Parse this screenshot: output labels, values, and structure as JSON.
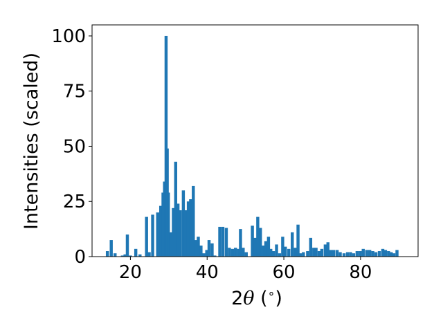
{
  "chart_data": {
    "type": "bar",
    "title": "",
    "xlabel": "2θ (°)",
    "xlabel_parts": {
      "pre": "2",
      "theta": "θ",
      "post": " (",
      "deg": "∘",
      "close": ")"
    },
    "ylabel": "Intensities (scaled)",
    "xlim": [
      10,
      95
    ],
    "ylim": [
      0,
      105
    ],
    "xticks": [
      20,
      40,
      60,
      80
    ],
    "yticks": [
      0,
      25,
      50,
      75,
      100
    ],
    "grid": false,
    "legend": "none",
    "bar_width": 0.8,
    "color": "#1f77b4",
    "x": [
      14.0,
      15.0,
      16.0,
      17.9,
      18.6,
      19.2,
      20.0,
      21.4,
      22.5,
      24.2,
      24.9,
      25.8,
      27.1,
      27.9,
      28.5,
      28.9,
      29.3,
      29.6,
      29.9,
      30.5,
      31.2,
      31.8,
      32.4,
      33.0,
      33.8,
      34.4,
      35.1,
      35.7,
      36.4,
      37.0,
      37.7,
      38.4,
      39.1,
      39.9,
      40.5,
      41.3,
      42.0,
      43.3,
      44.1,
      45.0,
      45.8,
      46.6,
      47.4,
      48.2,
      48.7,
      49.4,
      50.2,
      51.8,
      52.5,
      53.2,
      53.9,
      54.7,
      55.3,
      56.0,
      56.6,
      57.3,
      58.1,
      58.9,
      59.7,
      60.4,
      61.3,
      62.2,
      63.0,
      63.7,
      64.3,
      65.1,
      66.2,
      67.0,
      67.8,
      68.4,
      69.2,
      69.9,
      70.8,
      71.5,
      72.3,
      73.0,
      73.9,
      74.7,
      75.7,
      76.6,
      77.4,
      78.2,
      79.1,
      79.9,
      80.7,
      81.6,
      82.4,
      83.2,
      84.0,
      84.9,
      85.8,
      86.5,
      87.3,
      88.0,
      88.7,
      89.5
    ],
    "values": [
      2.5,
      7.5,
      1.5,
      0.5,
      1.0,
      10.0,
      0.5,
      3.5,
      1.0,
      18.0,
      2.0,
      19.0,
      20.0,
      23.0,
      29.0,
      34.0,
      100.0,
      49.0,
      29.0,
      11.0,
      22.0,
      43.0,
      24.0,
      21.0,
      30.0,
      21.0,
      25.0,
      26.0,
      32.0,
      7.5,
      9.0,
      5.0,
      1.5,
      3.0,
      7.5,
      6.0,
      0.5,
      13.5,
      13.5,
      13.0,
      4.0,
      3.5,
      4.0,
      3.5,
      12.5,
      4.0,
      2.0,
      14.0,
      8.5,
      18.0,
      13.0,
      5.0,
      7.0,
      9.0,
      3.5,
      2.5,
      5.5,
      1.5,
      9.0,
      4.5,
      3.5,
      11.0,
      4.0,
      14.5,
      1.5,
      2.0,
      2.5,
      8.5,
      4.0,
      4.0,
      2.5,
      3.5,
      5.5,
      6.5,
      3.0,
      3.0,
      3.0,
      2.0,
      1.5,
      2.0,
      2.0,
      1.5,
      2.5,
      2.5,
      3.5,
      3.0,
      3.0,
      2.5,
      2.0,
      2.5,
      3.5,
      3.0,
      2.5,
      2.0,
      1.5,
      3.0
    ]
  }
}
